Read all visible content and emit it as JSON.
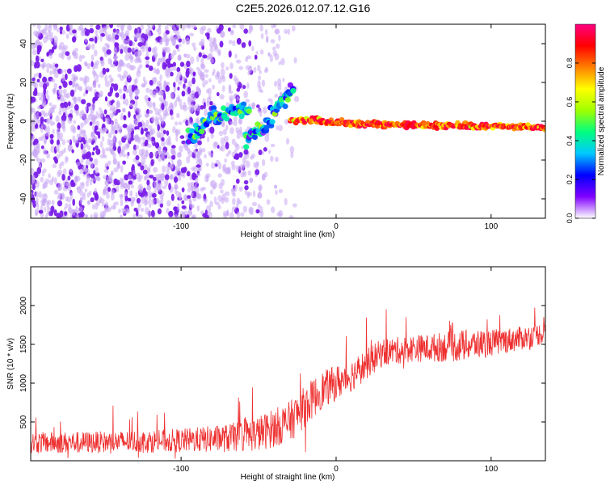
{
  "figure_title": "C2E5.2026.012.07.12.G16",
  "chart_data": [
    {
      "type": "heatmap",
      "title": "C2E5.2026.012.07.12.G16",
      "xlabel": "Height of straight line (km)",
      "ylabel": "Frequency (Hz)",
      "xlim": [
        -197,
        135
      ],
      "ylim": [
        -50,
        50
      ],
      "x_ticks": [
        -100,
        0,
        100
      ],
      "x_tick_labels": [
        "-100",
        "0",
        "100"
      ],
      "y_ticks": [
        40,
        20,
        0,
        -20,
        -40
      ],
      "y_tick_labels": [
        "40",
        "20",
        "0",
        "-20",
        "-40"
      ],
      "colorbar": {
        "label": "Normalized spectral amplitude",
        "range": [
          0,
          1
        ],
        "ticks": [
          0.0,
          0.2,
          0.4,
          0.6,
          0.8
        ],
        "tick_labels": [
          "0.0",
          "0.2",
          "0.4",
          "0.6",
          "0.8"
        ],
        "colormap": [
          "#ffffff",
          "#8000ff",
          "#0000ff",
          "#00c8ff",
          "#00ff80",
          "#a0ff00",
          "#ffff00",
          "#ff8000",
          "#ff0000",
          "#ff0080"
        ]
      },
      "features": [
        {
          "name": "noise-scatter",
          "x_range": [
            -197,
            -25
          ],
          "y_range": [
            -50,
            50
          ],
          "typical_amplitude": 0.05
        },
        {
          "name": "rising-branch",
          "points": [
            [
              -95,
              -8
            ],
            [
              -80,
              2
            ],
            [
              -65,
              5
            ],
            [
              -55,
              6
            ]
          ],
          "amplitude": 0.35
        },
        {
          "name": "crossing-branch",
          "points": [
            [
              -58,
              -10
            ],
            [
              -45,
              -2
            ],
            [
              -35,
              10
            ],
            [
              -28,
              16
            ]
          ],
          "amplitude": 0.35
        },
        {
          "name": "main-tone",
          "points": [
            [
              -30,
              0
            ],
            [
              -15,
              1
            ],
            [
              0,
              -1
            ],
            [
              50,
              -2
            ],
            [
              135,
              -3
            ]
          ],
          "amplitude": 0.9
        }
      ]
    },
    {
      "type": "line",
      "xlabel": "Height of straight line (km)",
      "ylabel": "SNR (10 * v/v)",
      "xlim": [
        -197,
        135
      ],
      "ylim": [
        0,
        2500
      ],
      "x_ticks": [
        -100,
        0,
        100
      ],
      "x_tick_labels": [
        "-100",
        "0",
        "100"
      ],
      "y_ticks": [
        500,
        1000,
        1500,
        2000
      ],
      "y_tick_labels": [
        "500",
        "1000",
        "1500",
        "2000"
      ],
      "color": "#ee3030",
      "series": [
        {
          "name": "SNR",
          "trend": {
            "x": [
              -197,
              -150,
              -100,
              -70,
              -50,
              -30,
              -20,
              -10,
              0,
              10,
              20,
              30,
              40,
              50,
              60,
              70,
              80,
              100,
              120,
              135
            ],
            "y": [
              230,
              240,
              260,
              290,
              350,
              500,
              700,
              900,
              1000,
              1100,
              1250,
              1400,
              1420,
              1450,
              1450,
              1470,
              1480,
              1520,
              1580,
              1650
            ]
          },
          "noise_amplitude": [
            200,
            200,
            220,
            260,
            330,
            380,
            380,
            350,
            330,
            300,
            280,
            260,
            250,
            250,
            260,
            280,
            300,
            250,
            220,
            200
          ]
        }
      ]
    }
  ]
}
